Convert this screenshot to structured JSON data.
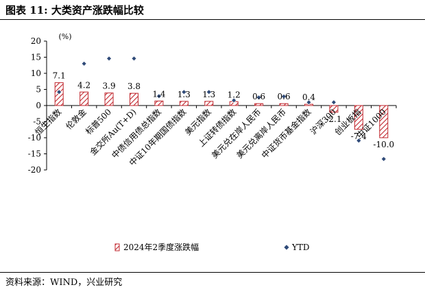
{
  "figure": {
    "title": "图表 11: 大类资产涨跌幅比较",
    "source": "资料来源：WIND，兴业研究"
  },
  "chart_data": {
    "type": "bar",
    "ylabel": "(%)",
    "ylim": [
      -20,
      20
    ],
    "yticks": [
      "20",
      "15",
      "10",
      "5",
      "0",
      "-5",
      "-10",
      "-15",
      "-20"
    ],
    "categories": [
      "恒生指数",
      "伦敦金",
      "标普500",
      "金交所Au(T+D)",
      "中债信用债总指数",
      "中证10年期国债指数",
      "美元指数",
      "上证转债指数",
      "美元兑在岸人民币",
      "美元兑离岸人民币",
      "中证货币基金指数",
      "沪深300",
      "创业板指",
      "中证1000"
    ],
    "series": [
      {
        "name": "2024年2季度涨跌幅",
        "style": "hatched-bar",
        "color": "#c0262d",
        "values": [
          7.1,
          4.2,
          3.9,
          3.8,
          1.4,
          1.3,
          1.3,
          1.2,
          0.6,
          0.6,
          0.4,
          -2.1,
          -7.4,
          -10.0
        ],
        "labels": [
          "7.1",
          "4.2",
          "3.9",
          "3.8",
          "1.4",
          "1.3",
          "1.3",
          "1.2",
          "0.6",
          "0.6",
          "0.4",
          "-2.1",
          "-7.4",
          "-10.0"
        ]
      },
      {
        "name": "YTD",
        "style": "diamond-marker",
        "color": "#2f4a78",
        "values": [
          4.2,
          13.0,
          14.6,
          14.6,
          2.9,
          4.2,
          4.2,
          1.6,
          2.5,
          2.8,
          1.0,
          1.0,
          -10.9,
          -16.6
        ]
      }
    ],
    "legend": {
      "placement": "bottom"
    },
    "grid": false
  }
}
